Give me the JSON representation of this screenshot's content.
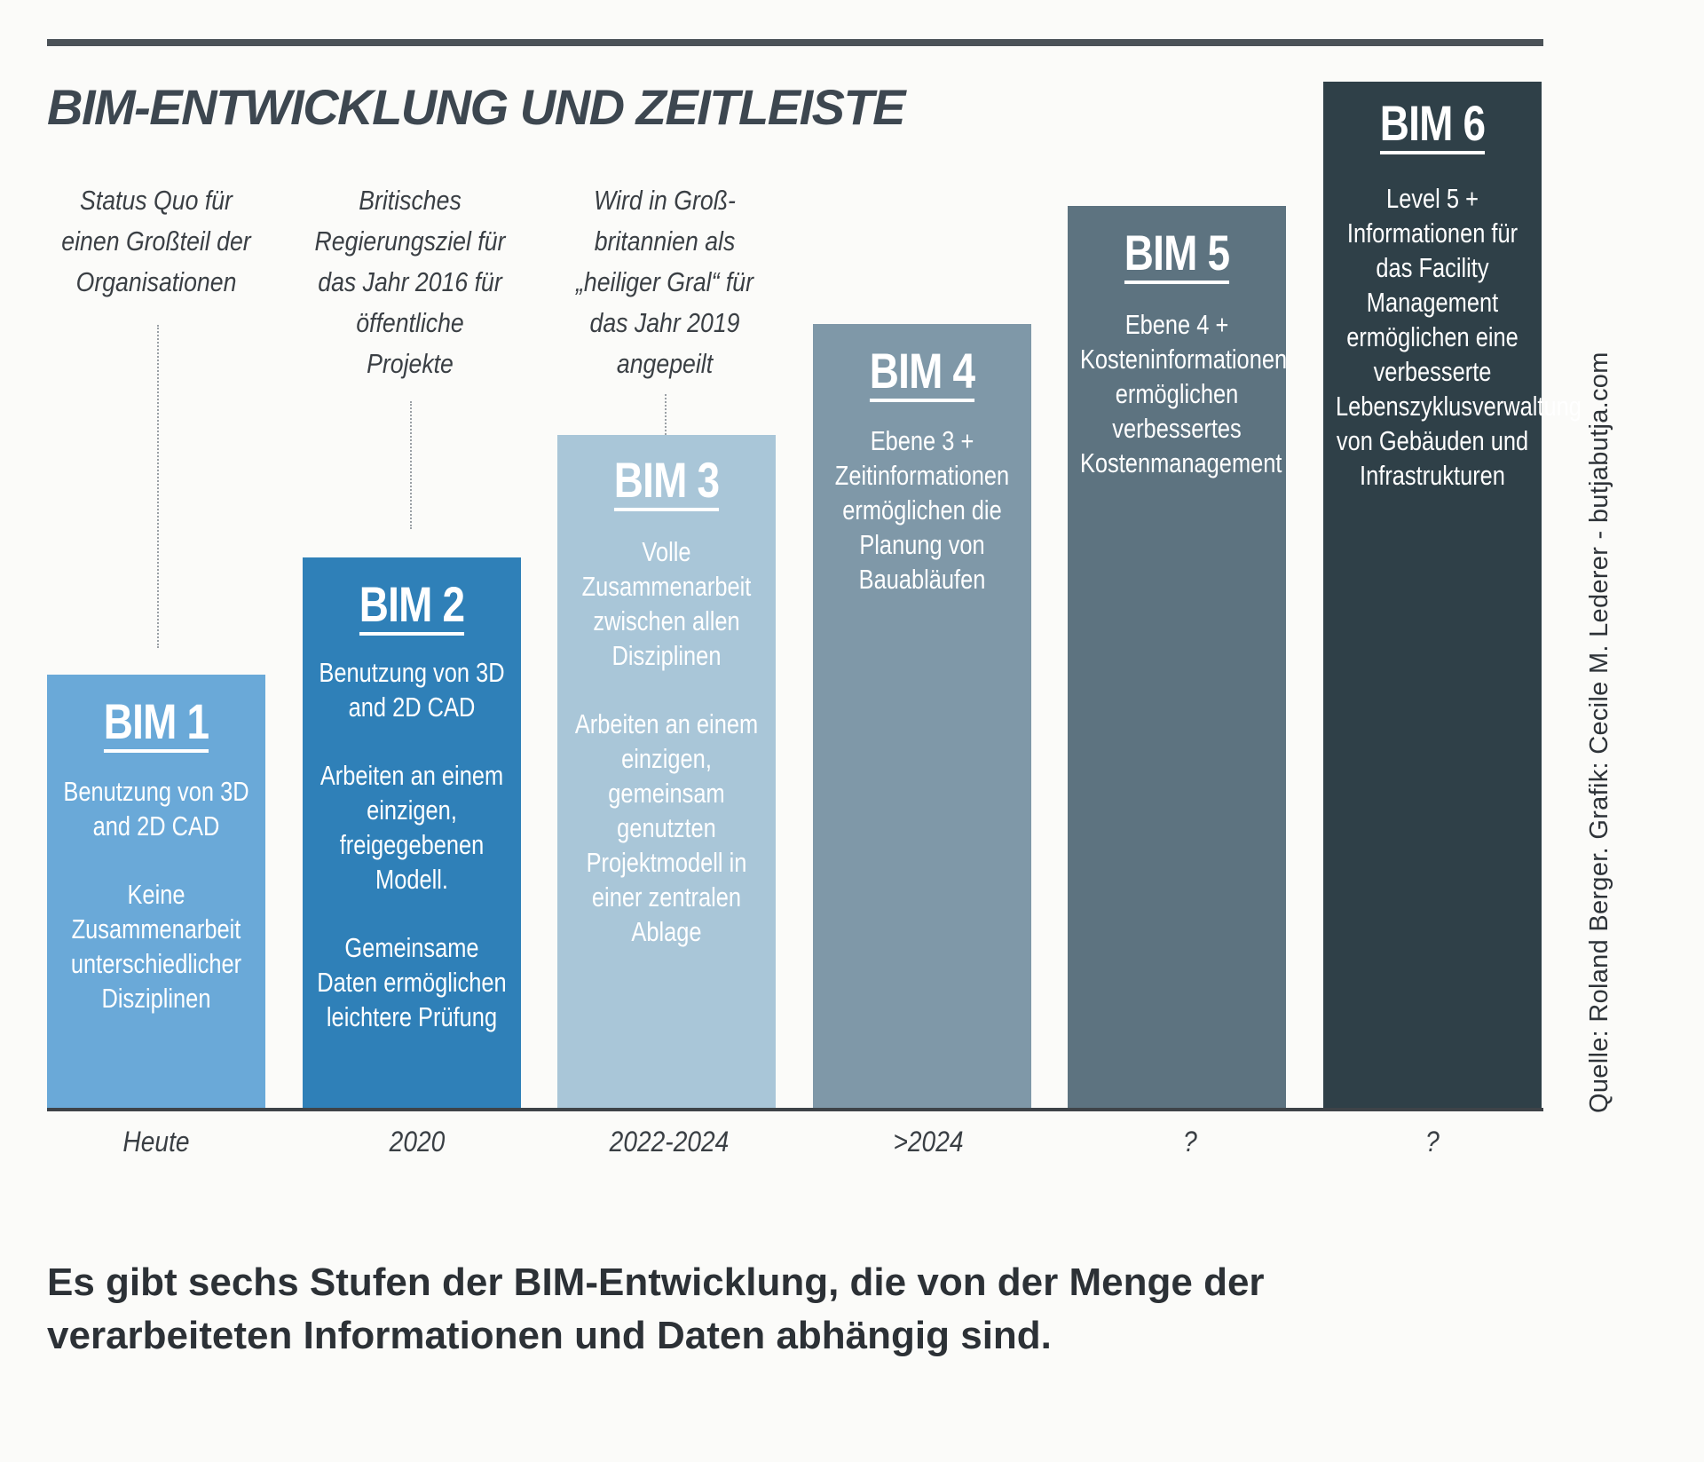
{
  "title": "BIM-ENTWICKLUNG UND ZEITLEISTE",
  "annotations": [
    "Status Quo für einen Großteil der Organisationen",
    "Britisches Regierungsziel für das Jahr 2016 für öffentliche Projekte",
    "Wird in Groß-britannien als „heiliger Gral“ für das Jahr 2019 angepeilt"
  ],
  "stages": [
    {
      "label": "BIM 1",
      "color": "#6aa9d8",
      "period": "Heute",
      "description": [
        "Benutzung von 3D and 2D CAD",
        "Keine Zusammenarbeit unterschiedlicher Disziplinen"
      ]
    },
    {
      "label": "BIM 2",
      "color": "#2f80b8",
      "period": "2020",
      "description": [
        "Benutzung von 3D and 2D CAD",
        "Arbeiten an einem einzigen, freigegebenen Modell.",
        "Gemeinsame Daten ermöglichen leichtere Prüfung"
      ]
    },
    {
      "label": "BIM 3",
      "color": "#a9c6d8",
      "period": "2022-2024",
      "description": [
        "Volle Zusammenarbeit zwischen allen Disziplinen",
        "Arbeiten an einem einzigen, gemeinsam genutzten Projektmodell in einer zentralen Ablage"
      ]
    },
    {
      "label": "BIM 4",
      "color": "#7f98a8",
      "period": ">2024",
      "description": [
        "Ebene 3 + Zeitinformationen ermöglichen die Planung von Bauabläufen"
      ]
    },
    {
      "label": "BIM 5",
      "color": "#5d7380",
      "period": "?",
      "description": [
        "Ebene 4 + Kosteninformationen ermöglichen verbessertes Kostenmanagement"
      ]
    },
    {
      "label": "BIM 6",
      "color": "#2f4048",
      "period": "?",
      "description": [
        "Level 5 + Informationen für das Facility Management ermöglichen eine verbesserte Lebenszyklusverwaltung von Gebäuden und Infrastrukturen"
      ]
    }
  ],
  "source": "Quelle: Roland Berger. Grafik: Cecile M. Lederer - butjabutja.com",
  "caption": "Es gibt sechs Stufen der BIM-Entwicklung, die von der Menge der verarbeiteten Informationen und Daten abhängig sind."
}
